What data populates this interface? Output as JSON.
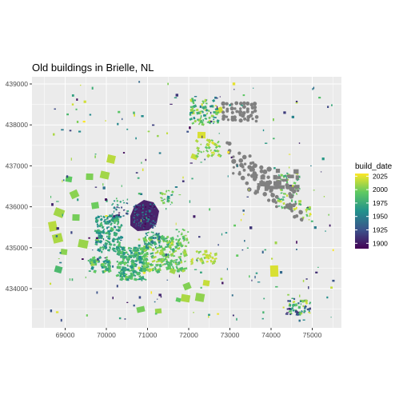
{
  "map": {
    "title": "Old buildings in Brielle, NL",
    "panel_background": "#ebebeb",
    "grid_color": "#ffffff",
    "missing_color": "#808080",
    "x_ticks": [
      "69000",
      "70000",
      "71000",
      "72000",
      "73000",
      "74000",
      "75000"
    ],
    "y_ticks": [
      "434000",
      "435000",
      "436000",
      "437000",
      "438000",
      "439000"
    ],
    "legend": {
      "title": "build_date",
      "labels": [
        "2025",
        "2000",
        "1975",
        "1950",
        "1925",
        "1900"
      ],
      "range": [
        1890,
        2030
      ],
      "colors": [
        "#440154",
        "#3b528b",
        "#21918c",
        "#5ec962",
        "#fde725"
      ]
    }
  }
}
